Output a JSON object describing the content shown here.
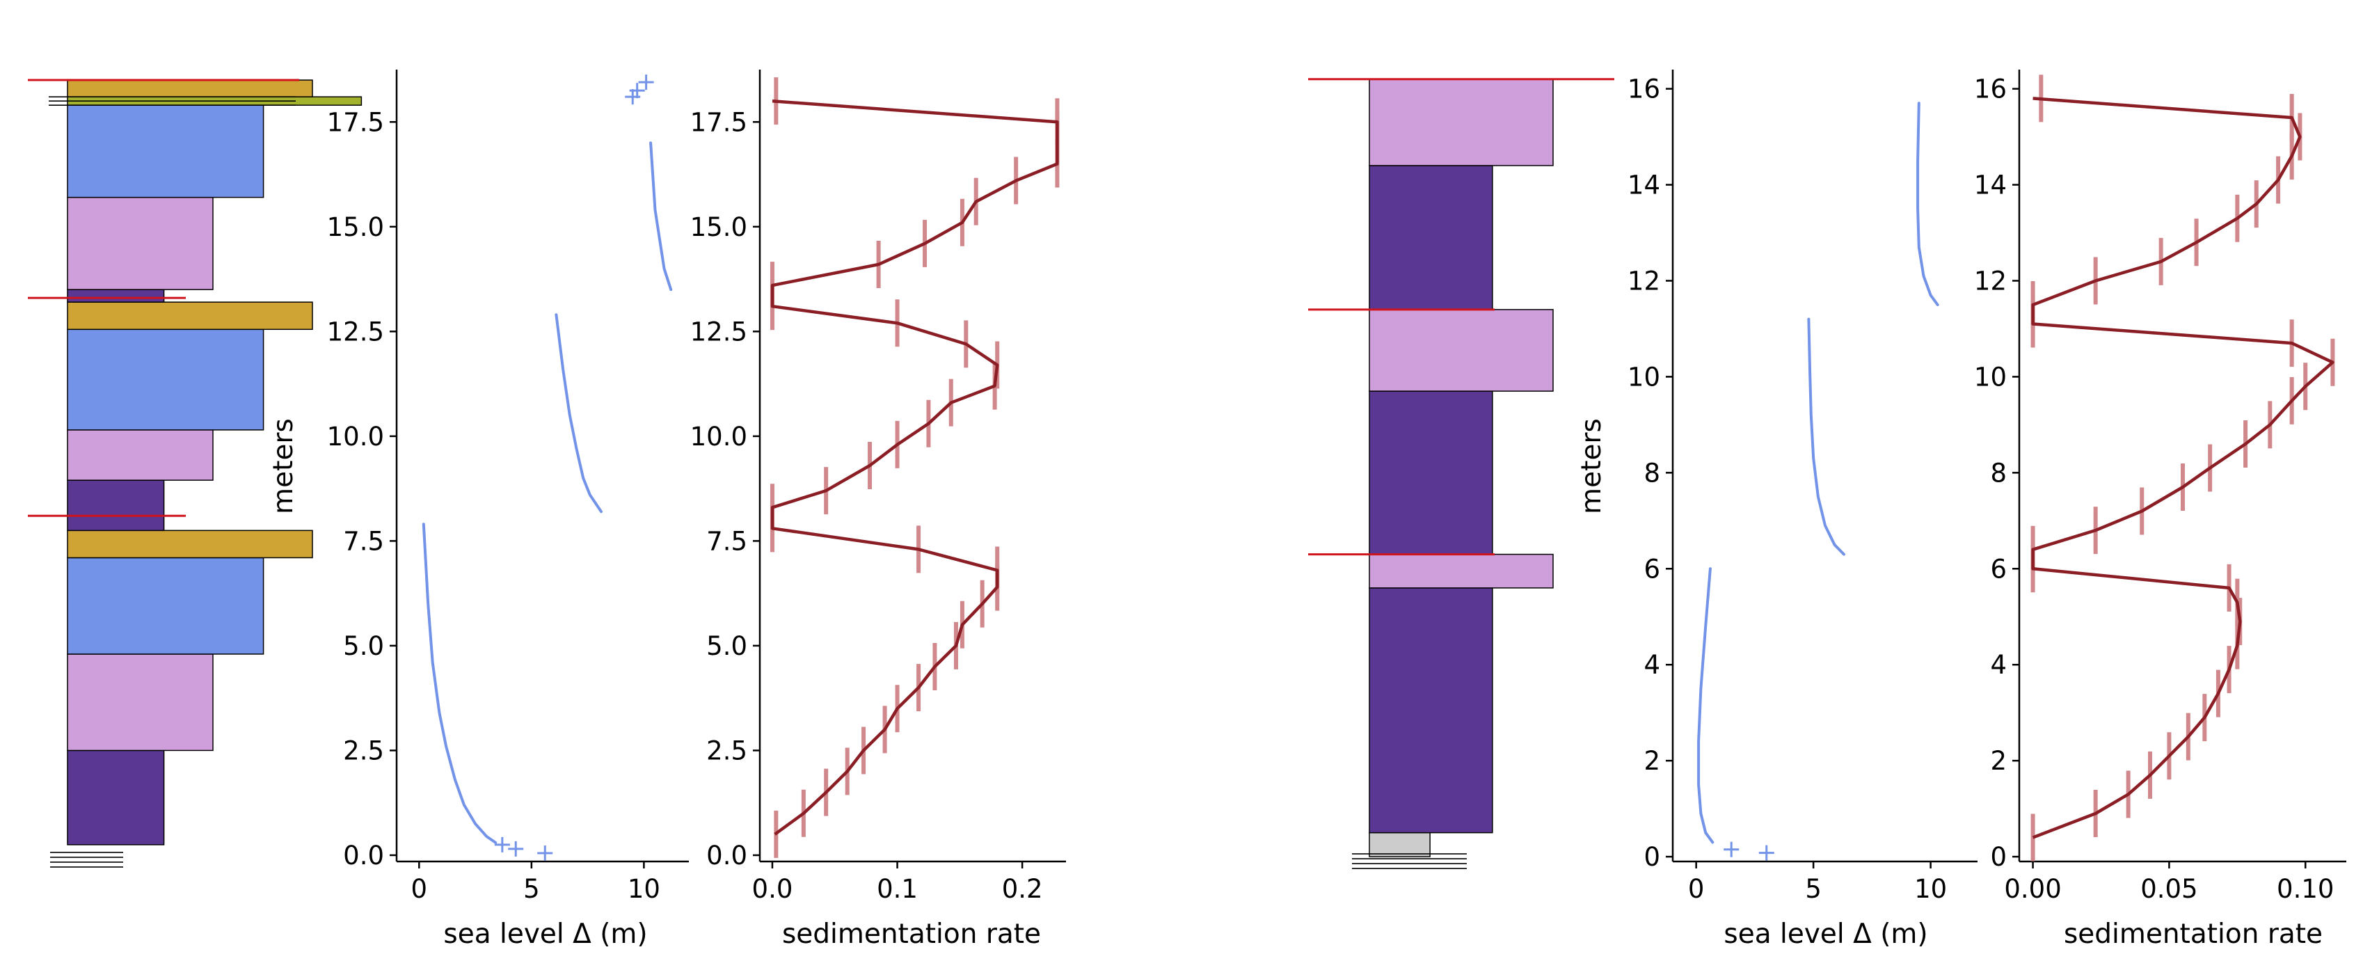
{
  "colors": {
    "dark_purple": "#5b3794",
    "light_purple": "#cf9fdb",
    "blue": "#7393e8",
    "gold": "#cfa435",
    "olive": "#a3b32e",
    "grey": "#cccccc",
    "red_line": "#d0141d",
    "sed_line": "#8b1d24",
    "sed_err": "#d1888c"
  },
  "chart_data": [
    {
      "type": "column",
      "panel": "left",
      "ylim": [
        -0.15,
        18.75
      ],
      "beds": [
        {
          "bottom": 0.0,
          "top": 0.3,
          "width": 0.32,
          "color": "grey"
        },
        {
          "bottom": 0.3,
          "top": 1.6,
          "width": 0.63,
          "color": "dark_purple"
        },
        {
          "bottom": 1.6,
          "top": 3.9,
          "width": 0.95,
          "color": "light_purple"
        },
        {
          "bottom": 1.6,
          "top": 1.6,
          "width": 0,
          "color": "dark_purple"
        },
        {
          "bottom": 2.9,
          "top": 5.2,
          "width": 0.95,
          "color": "light_purple"
        },
        {
          "bottom": 5.2,
          "top": 7.2,
          "width": 1.28,
          "color": "blue"
        },
        {
          "bottom": 7.2,
          "top": 7.7,
          "width": 1.6,
          "color": "gold"
        },
        {
          "bottom": 8.0,
          "top": 10.0,
          "width": 0.63,
          "color": "dark_purple"
        },
        {
          "bottom": 10.0,
          "top": 11.8,
          "width": 0.95,
          "color": "light_purple"
        },
        {
          "bottom": 11.8,
          "top": 12.6,
          "width": 1.28,
          "color": "blue"
        },
        {
          "bottom": 12.6,
          "top": 12.8,
          "width": 1.6,
          "color": "gold"
        },
        {
          "bottom": 12.6,
          "top": 13.3,
          "width": 0.63,
          "color": "dark_purple"
        },
        {
          "bottom": 13.3,
          "top": 15.4,
          "width": 0.95,
          "color": "light_purple"
        },
        {
          "bottom": 15.4,
          "top": 18.0,
          "width": 1.28,
          "color": "blue"
        },
        {
          "bottom": 18.0,
          "top": 18.1,
          "width": 1.95,
          "color": "olive"
        },
        {
          "bottom": 18.1,
          "top": 18.5,
          "width": 1.6,
          "color": "gold"
        }
      ],
      "beds_fix": [
        {
          "bottom": 0.25,
          "top": 2.5,
          "width": 0.63,
          "color": "dark_purple"
        },
        {
          "bottom": 2.5,
          "top": 4.8,
          "width": 0.95,
          "color": "light_purple"
        },
        {
          "bottom": 4.8,
          "top": 7.1,
          "width": 1.28,
          "color": "blue"
        },
        {
          "bottom": 7.1,
          "top": 7.75,
          "width": 1.6,
          "color": "gold"
        },
        {
          "bottom": 7.75,
          "top": 8.95,
          "width": 0.63,
          "color": "dark_purple"
        },
        {
          "bottom": 8.95,
          "top": 10.15,
          "width": 0.95,
          "color": "light_purple"
        },
        {
          "bottom": 10.15,
          "top": 12.55,
          "width": 1.28,
          "color": "blue"
        },
        {
          "bottom": 12.55,
          "top": 13.2,
          "width": 1.6,
          "color": "gold"
        },
        {
          "bottom": 13.2,
          "top": 13.5,
          "width": 0.63,
          "color": "dark_purple"
        },
        {
          "bottom": 13.5,
          "top": 15.7,
          "width": 0.95,
          "color": "light_purple"
        },
        {
          "bottom": 15.7,
          "top": 17.9,
          "width": 1.28,
          "color": "blue"
        },
        {
          "bottom": 17.9,
          "top": 18.1,
          "width": 1.92,
          "color": "olive"
        },
        {
          "bottom": 18.1,
          "top": 18.5,
          "width": 1.6,
          "color": "gold"
        }
      ],
      "red_lines": [
        18.5,
        13.3,
        8.1
      ],
      "bottom_hatch": true
    },
    {
      "type": "line",
      "panel": "left-sea-level",
      "xlabel": "sea level Δ (m)",
      "ylabel": "meters",
      "xlim": [
        -1.0,
        12.0
      ],
      "ylim": [
        -0.15,
        18.75
      ],
      "xticks": [
        0,
        5,
        10
      ],
      "yticks": [
        0.0,
        2.5,
        5.0,
        7.5,
        10.0,
        12.5,
        15.0,
        17.5
      ],
      "ytick_labels": [
        "0.0",
        "2.5",
        "5.0",
        "7.5",
        "10.0",
        "12.5",
        "15.0",
        "17.5"
      ],
      "segments": [
        [
          [
            0.2,
            7.9
          ],
          [
            0.4,
            6.0
          ],
          [
            0.6,
            4.6
          ],
          [
            0.9,
            3.4
          ],
          [
            1.2,
            2.6
          ],
          [
            1.6,
            1.8
          ],
          [
            2.0,
            1.2
          ],
          [
            2.5,
            0.75
          ],
          [
            3.0,
            0.45
          ],
          [
            3.4,
            0.3
          ]
        ],
        [
          [
            6.1,
            12.9
          ],
          [
            6.4,
            11.6
          ],
          [
            6.7,
            10.5
          ],
          [
            7.0,
            9.7
          ],
          [
            7.3,
            9.0
          ],
          [
            7.6,
            8.6
          ],
          [
            8.1,
            8.2
          ]
        ],
        [
          [
            10.3,
            17.0
          ],
          [
            10.4,
            16.2
          ],
          [
            10.5,
            15.4
          ],
          [
            10.7,
            14.7
          ],
          [
            10.9,
            14.0
          ],
          [
            11.2,
            13.5
          ]
        ]
      ],
      "markers": [
        [
          3.7,
          0.25
        ],
        [
          4.3,
          0.15
        ],
        [
          5.6,
          0.05
        ],
        [
          9.5,
          18.1
        ],
        [
          9.7,
          18.25
        ],
        [
          10.1,
          18.45
        ]
      ]
    },
    {
      "type": "line",
      "panel": "left-sedimentation",
      "xlabel": "sedimentation rate",
      "xlim": [
        -0.01,
        0.235
      ],
      "ylim": [
        -0.15,
        18.75
      ],
      "xticks": [
        0.0,
        0.1,
        0.2
      ],
      "xtick_labels": [
        "0.0",
        "0.1",
        "0.2"
      ],
      "yticks": [
        0.0,
        2.5,
        5.0,
        7.5,
        10.0,
        12.5,
        15.0,
        17.5
      ],
      "ytick_labels": [
        "0.0",
        "2.5",
        "5.0",
        "7.5",
        "10.0",
        "12.5",
        "15.0",
        "17.5"
      ],
      "line": [
        [
          0.002,
          0.5
        ],
        [
          0.025,
          1.0
        ],
        [
          0.043,
          1.5
        ],
        [
          0.06,
          2.0
        ],
        [
          0.073,
          2.5
        ],
        [
          0.09,
          3.0
        ],
        [
          0.1,
          3.5
        ],
        [
          0.117,
          4.0
        ],
        [
          0.13,
          4.5
        ],
        [
          0.147,
          5.0
        ],
        [
          0.152,
          5.5
        ],
        [
          0.168,
          6.0
        ],
        [
          0.18,
          6.4
        ],
        [
          0.18,
          6.8
        ],
        [
          0.117,
          7.3
        ],
        [
          0.0,
          7.8
        ],
        [
          0.0,
          8.3
        ],
        [
          0.043,
          8.7
        ],
        [
          0.078,
          9.3
        ],
        [
          0.1,
          9.8
        ],
        [
          0.125,
          10.3
        ],
        [
          0.143,
          10.8
        ],
        [
          0.178,
          11.2
        ],
        [
          0.18,
          11.7
        ],
        [
          0.155,
          12.2
        ],
        [
          0.1,
          12.7
        ],
        [
          0.0,
          13.1
        ],
        [
          0.0,
          13.6
        ],
        [
          0.085,
          14.1
        ],
        [
          0.122,
          14.6
        ],
        [
          0.152,
          15.1
        ],
        [
          0.163,
          15.6
        ],
        [
          0.195,
          16.1
        ],
        [
          0.228,
          16.5
        ],
        [
          0.228,
          17.1
        ],
        [
          0.228,
          17.5
        ],
        [
          0.0,
          18.0
        ]
      ],
      "error_bars": [
        [
          0.003,
          0.5
        ],
        [
          0.025,
          1.0
        ],
        [
          0.043,
          1.5
        ],
        [
          0.06,
          2.0
        ],
        [
          0.073,
          2.5
        ],
        [
          0.09,
          3.0
        ],
        [
          0.1,
          3.5
        ],
        [
          0.117,
          4.0
        ],
        [
          0.13,
          4.5
        ],
        [
          0.147,
          5.0
        ],
        [
          0.152,
          5.5
        ],
        [
          0.168,
          6.0
        ],
        [
          0.18,
          6.4
        ],
        [
          0.18,
          6.8
        ],
        [
          0.117,
          7.3
        ],
        [
          0.0,
          7.8
        ],
        [
          0.0,
          8.3
        ],
        [
          0.043,
          8.7
        ],
        [
          0.078,
          9.3
        ],
        [
          0.1,
          9.8
        ],
        [
          0.125,
          10.3
        ],
        [
          0.143,
          10.8
        ],
        [
          0.178,
          11.2
        ],
        [
          0.18,
          11.7
        ],
        [
          0.155,
          12.2
        ],
        [
          0.1,
          12.7
        ],
        [
          0.0,
          13.1
        ],
        [
          0.0,
          13.6
        ],
        [
          0.085,
          14.1
        ],
        [
          0.122,
          14.6
        ],
        [
          0.152,
          15.1
        ],
        [
          0.163,
          15.6
        ],
        [
          0.195,
          16.1
        ],
        [
          0.228,
          16.5
        ],
        [
          0.228,
          17.1
        ],
        [
          0.228,
          17.5
        ],
        [
          0.003,
          18.0
        ]
      ]
    },
    {
      "type": "column",
      "panel": "right",
      "ylim": [
        -0.1,
        16.4
      ],
      "beds": [
        {
          "bottom": 0.0,
          "top": 0.5,
          "width": 0.33,
          "color": "grey"
        },
        {
          "bottom": 0.5,
          "top": 5.6,
          "width": 0.67,
          "color": "dark_purple"
        },
        {
          "bottom": 5.6,
          "top": 6.3,
          "width": 1.0,
          "color": "light_purple"
        },
        {
          "bottom": 6.3,
          "top": 9.7,
          "width": 0.67,
          "color": "dark_purple"
        },
        {
          "bottom": 9.7,
          "top": 11.4,
          "width": 1.0,
          "color": "light_purple"
        },
        {
          "bottom": 11.4,
          "top": 14.4,
          "width": 0.67,
          "color": "dark_purple"
        },
        {
          "bottom": 14.4,
          "top": 16.2,
          "width": 1.0,
          "color": "light_purple"
        }
      ],
      "red_lines": [
        16.2,
        11.4,
        6.3
      ],
      "bottom_hatch": true
    },
    {
      "type": "line",
      "panel": "right-sea-level",
      "xlabel": "sea level Δ (m)",
      "ylabel": "meters",
      "xlim": [
        -1.0,
        12.0
      ],
      "ylim": [
        -0.1,
        16.4
      ],
      "xticks": [
        0,
        5,
        10
      ],
      "yticks": [
        0,
        2,
        4,
        6,
        8,
        10,
        12,
        14,
        16
      ],
      "ytick_labels": [
        "0",
        "2",
        "4",
        "6",
        "8",
        "10",
        "12",
        "14",
        "16"
      ],
      "segments": [
        [
          [
            0.6,
            6.0
          ],
          [
            0.4,
            4.8
          ],
          [
            0.2,
            3.5
          ],
          [
            0.1,
            2.4
          ],
          [
            0.1,
            1.5
          ],
          [
            0.2,
            0.9
          ],
          [
            0.4,
            0.5
          ],
          [
            0.7,
            0.3
          ]
        ],
        [
          [
            4.8,
            11.2
          ],
          [
            4.85,
            10.1
          ],
          [
            4.9,
            9.2
          ],
          [
            5.0,
            8.3
          ],
          [
            5.2,
            7.5
          ],
          [
            5.5,
            6.9
          ],
          [
            5.9,
            6.5
          ],
          [
            6.3,
            6.3
          ]
        ],
        [
          [
            9.5,
            15.7
          ],
          [
            9.45,
            14.5
          ],
          [
            9.45,
            13.5
          ],
          [
            9.5,
            12.7
          ],
          [
            9.7,
            12.1
          ],
          [
            10.0,
            11.7
          ],
          [
            10.3,
            11.5
          ]
        ]
      ],
      "markers": [
        [
          1.5,
          0.15
        ],
        [
          3.0,
          0.08
        ]
      ]
    },
    {
      "type": "line",
      "panel": "right-sedimentation",
      "xlabel": "sedimentation rate",
      "xlim": [
        -0.005,
        0.115
      ],
      "ylim": [
        -0.1,
        16.4
      ],
      "xticks": [
        0.0,
        0.05,
        0.1
      ],
      "xtick_labels": [
        "0.00",
        "0.05",
        "0.10"
      ],
      "yticks": [
        0,
        2,
        4,
        6,
        8,
        10,
        12,
        14,
        16
      ],
      "ytick_labels": [
        "0",
        "2",
        "4",
        "6",
        "8",
        "10",
        "12",
        "14",
        "16"
      ],
      "line": [
        [
          0.0,
          0.4
        ],
        [
          0.023,
          0.9
        ],
        [
          0.035,
          1.3
        ],
        [
          0.043,
          1.7
        ],
        [
          0.05,
          2.1
        ],
        [
          0.057,
          2.5
        ],
        [
          0.063,
          2.9
        ],
        [
          0.068,
          3.4
        ],
        [
          0.072,
          3.9
        ],
        [
          0.075,
          4.4
        ],
        [
          0.076,
          4.9
        ],
        [
          0.075,
          5.3
        ],
        [
          0.072,
          5.6
        ],
        [
          0.0,
          6.0
        ],
        [
          0.0,
          6.4
        ],
        [
          0.023,
          6.8
        ],
        [
          0.04,
          7.2
        ],
        [
          0.055,
          7.7
        ],
        [
          0.065,
          8.1
        ],
        [
          0.078,
          8.6
        ],
        [
          0.087,
          9.0
        ],
        [
          0.095,
          9.5
        ],
        [
          0.1,
          9.8
        ],
        [
          0.11,
          10.3
        ],
        [
          0.095,
          10.7
        ],
        [
          0.0,
          11.1
        ],
        [
          0.0,
          11.5
        ],
        [
          0.023,
          12.0
        ],
        [
          0.047,
          12.4
        ],
        [
          0.06,
          12.8
        ],
        [
          0.075,
          13.3
        ],
        [
          0.082,
          13.6
        ],
        [
          0.09,
          14.1
        ],
        [
          0.095,
          14.6
        ],
        [
          0.098,
          15.0
        ],
        [
          0.095,
          15.4
        ],
        [
          0.0,
          15.8
        ]
      ],
      "error_bars": [
        [
          0.0,
          0.4
        ],
        [
          0.023,
          0.9
        ],
        [
          0.035,
          1.3
        ],
        [
          0.043,
          1.7
        ],
        [
          0.05,
          2.1
        ],
        [
          0.057,
          2.5
        ],
        [
          0.063,
          2.9
        ],
        [
          0.068,
          3.4
        ],
        [
          0.072,
          3.9
        ],
        [
          0.075,
          4.4
        ],
        [
          0.076,
          4.9
        ],
        [
          0.075,
          5.3
        ],
        [
          0.072,
          5.6
        ],
        [
          0.0,
          6.0
        ],
        [
          0.0,
          6.4
        ],
        [
          0.023,
          6.8
        ],
        [
          0.04,
          7.2
        ],
        [
          0.055,
          7.7
        ],
        [
          0.065,
          8.1
        ],
        [
          0.078,
          8.6
        ],
        [
          0.087,
          9.0
        ],
        [
          0.095,
          9.5
        ],
        [
          0.1,
          9.8
        ],
        [
          0.11,
          10.3
        ],
        [
          0.095,
          10.7
        ],
        [
          0.0,
          11.1
        ],
        [
          0.0,
          11.5
        ],
        [
          0.023,
          12.0
        ],
        [
          0.047,
          12.4
        ],
        [
          0.06,
          12.8
        ],
        [
          0.075,
          13.3
        ],
        [
          0.082,
          13.6
        ],
        [
          0.09,
          14.1
        ],
        [
          0.095,
          14.6
        ],
        [
          0.098,
          15.0
        ],
        [
          0.095,
          15.4
        ],
        [
          0.003,
          15.8
        ]
      ]
    }
  ]
}
